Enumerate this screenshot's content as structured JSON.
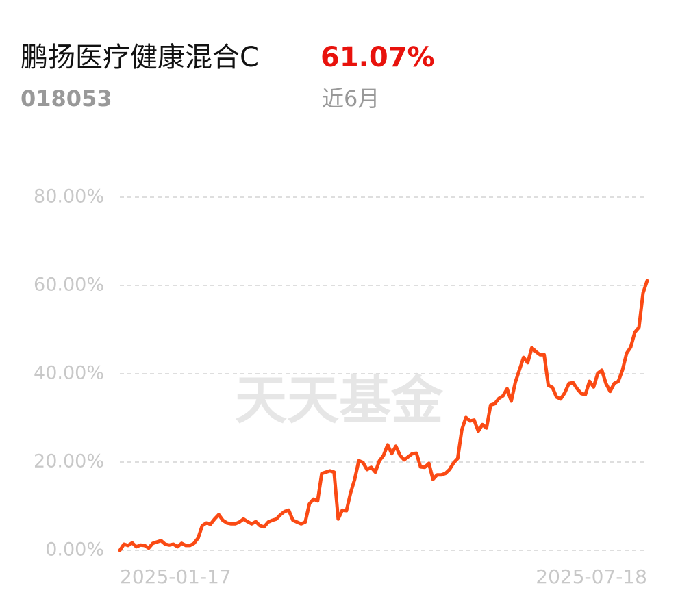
{
  "chart_data": {
    "type": "line",
    "title": "鹏扬医疗健康混合C",
    "code": "018053",
    "return_value": 61.07,
    "return_label": "61.07%",
    "period": "近6月",
    "watermark": "天天基金",
    "color": "#fa4a14",
    "grid": true,
    "ylim": [
      0,
      80
    ],
    "yticks": [
      {
        "value": 0,
        "label": "0.00%"
      },
      {
        "value": 20,
        "label": "20.00%"
      },
      {
        "value": 40,
        "label": "40.00%"
      },
      {
        "value": 60,
        "label": "60.00%"
      },
      {
        "value": 80,
        "label": "80.00%"
      }
    ],
    "categories": [
      "2025-01-17",
      null,
      null,
      null,
      null,
      null,
      null,
      null,
      null,
      null,
      null,
      null,
      null,
      null,
      null,
      null,
      null,
      null,
      null,
      null,
      null,
      null,
      null,
      null,
      null,
      null,
      null,
      null,
      null,
      null,
      null,
      null,
      null,
      null,
      null,
      null,
      null,
      null,
      null,
      null,
      null,
      null,
      null,
      null,
      null,
      null,
      null,
      null,
      null,
      null,
      null,
      null,
      null,
      null,
      null,
      null,
      null,
      null,
      null,
      null,
      null,
      null,
      null,
      null,
      null,
      null,
      null,
      null,
      null,
      null,
      null,
      null,
      null,
      null,
      null,
      null,
      null,
      null,
      null,
      null,
      null,
      null,
      null,
      null,
      null,
      null,
      null,
      null,
      null,
      null,
      null,
      null,
      null,
      null,
      null,
      null,
      null,
      null,
      null,
      null,
      null,
      null,
      null,
      null,
      null,
      null,
      null,
      null,
      null,
      null,
      null,
      null,
      null,
      null,
      null,
      null,
      null,
      null,
      null,
      null,
      null,
      null,
      null,
      null,
      null,
      null,
      null,
      null,
      "2025-07-18"
    ],
    "values": [
      0,
      1.4,
      1.1,
      1.7,
      0.8,
      1.2,
      1.1,
      0.5,
      1.6,
      1.9,
      2.2,
      1.4,
      1.2,
      1.4,
      0.8,
      1.6,
      1.1,
      1.1,
      1.6,
      2.8,
      5.6,
      6.2,
      5.9,
      7.1,
      8.1,
      6.8,
      6.2,
      6.0,
      6.0,
      6.4,
      7.1,
      6.5,
      6.0,
      6.5,
      5.6,
      5.3,
      6.4,
      6.8,
      7.1,
      8.1,
      8.8,
      9.1,
      6.8,
      6.4,
      6.0,
      6.4,
      10.5,
      11.6,
      11.2,
      17.4,
      17.7,
      18.0,
      17.7,
      7.1,
      9.1,
      9.0,
      13.0,
      16.1,
      20.3,
      19.9,
      18.3,
      18.8,
      17.7,
      20.3,
      21.5,
      23.9,
      21.9,
      23.6,
      21.5,
      20.5,
      21.2,
      21.9,
      22.0,
      18.9,
      18.8,
      19.7,
      16.1,
      17.1,
      17.1,
      17.4,
      18.3,
      19.8,
      20.8,
      27.3,
      30.1,
      29.3,
      29.5,
      27.0,
      28.5,
      27.7,
      32.9,
      33.2,
      34.4,
      35.0,
      36.6,
      33.8,
      38.1,
      40.9,
      43.7,
      42.5,
      45.9,
      45.0,
      44.3,
      44.3,
      37.4,
      36.9,
      34.7,
      34.3,
      35.7,
      37.8,
      38.0,
      36.6,
      35.5,
      35.3,
      38.3,
      37.0,
      40.1,
      40.8,
      37.8,
      36.0,
      37.8,
      38.3,
      40.8,
      44.6,
      46.0,
      49.4,
      50.5,
      58.3,
      61.07
    ]
  }
}
